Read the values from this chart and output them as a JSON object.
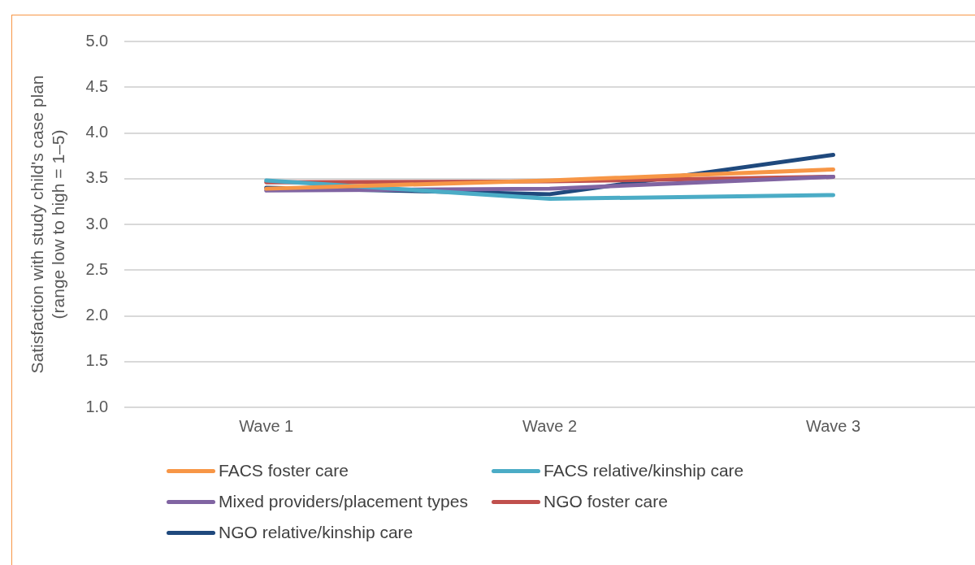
{
  "chart_data": {
    "type": "line",
    "ylabel": "Satisfaction with study child's case plan\n(range low to high = 1–5)",
    "categories": [
      "Wave 1",
      "Wave 2",
      "Wave 3"
    ],
    "series": [
      {
        "name": "FACS foster care",
        "color": "#f79646",
        "values": [
          3.39,
          3.48,
          3.6
        ]
      },
      {
        "name": "FACS relative/kinship care",
        "color": "#4bacc6",
        "values": [
          3.48,
          3.28,
          3.32
        ]
      },
      {
        "name": "Mixed providers/placement types",
        "color": "#8064a2",
        "values": [
          3.37,
          3.39,
          3.52
        ]
      },
      {
        "name": "NGO foster care",
        "color": "#c0504d",
        "values": [
          3.46,
          3.47,
          3.52
        ]
      },
      {
        "name": "NGO relative/kinship care",
        "color": "#1f497d",
        "values": [
          3.4,
          3.33,
          3.76
        ]
      }
    ],
    "ylim": [
      1,
      5
    ],
    "yticks": [
      {
        "value": 1,
        "label": "1.0"
      },
      {
        "value": 1.5,
        "label": "1.5"
      },
      {
        "value": 2,
        "label": "2.0"
      },
      {
        "value": 2.5,
        "label": "2.5"
      },
      {
        "value": 3,
        "label": "3.0"
      },
      {
        "value": 3.5,
        "label": "3.5"
      },
      {
        "value": 4,
        "label": "4.0"
      },
      {
        "value": 4.5,
        "label": "4.5"
      },
      {
        "value": 5,
        "label": "5.0"
      }
    ],
    "grid": "y",
    "legend": "bottom",
    "marker": "none",
    "line_style": "solid"
  }
}
